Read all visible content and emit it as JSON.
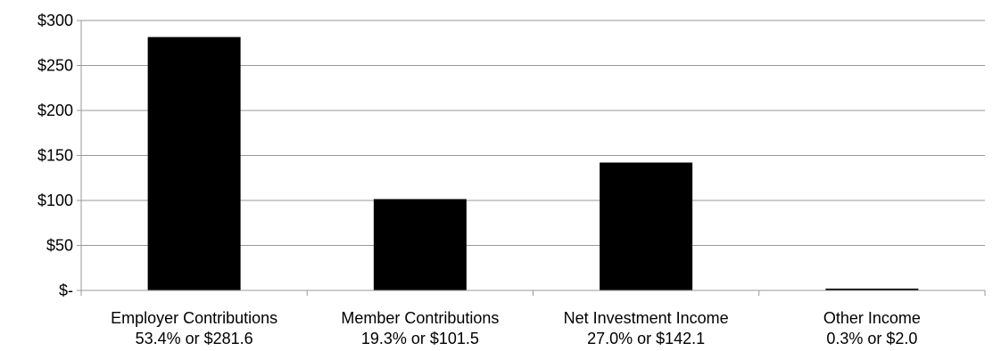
{
  "chart_data": {
    "type": "bar",
    "categories": [
      [
        "Employer Contributions",
        "53.4% or $281.6"
      ],
      [
        "Member Contributions",
        "19.3% or $101.5"
      ],
      [
        "Net Investment Income",
        "27.0% or $142.1"
      ],
      [
        "Other Income",
        "0.3% or $2.0"
      ]
    ],
    "values": [
      281.6,
      101.5,
      142.1,
      2.0
    ],
    "y_ticks": [
      {
        "value": 300,
        "label": "$300"
      },
      {
        "value": 250,
        "label": "$250"
      },
      {
        "value": 200,
        "label": "$200"
      },
      {
        "value": 150,
        "label": "$150"
      },
      {
        "value": 100,
        "label": "$100"
      },
      {
        "value": 50,
        "label": "$50"
      },
      {
        "value": 0,
        "label": "$-"
      }
    ],
    "ylim": [
      0,
      300
    ],
    "grid": true,
    "bar_color": "#000000",
    "grid_color": "#999999"
  }
}
